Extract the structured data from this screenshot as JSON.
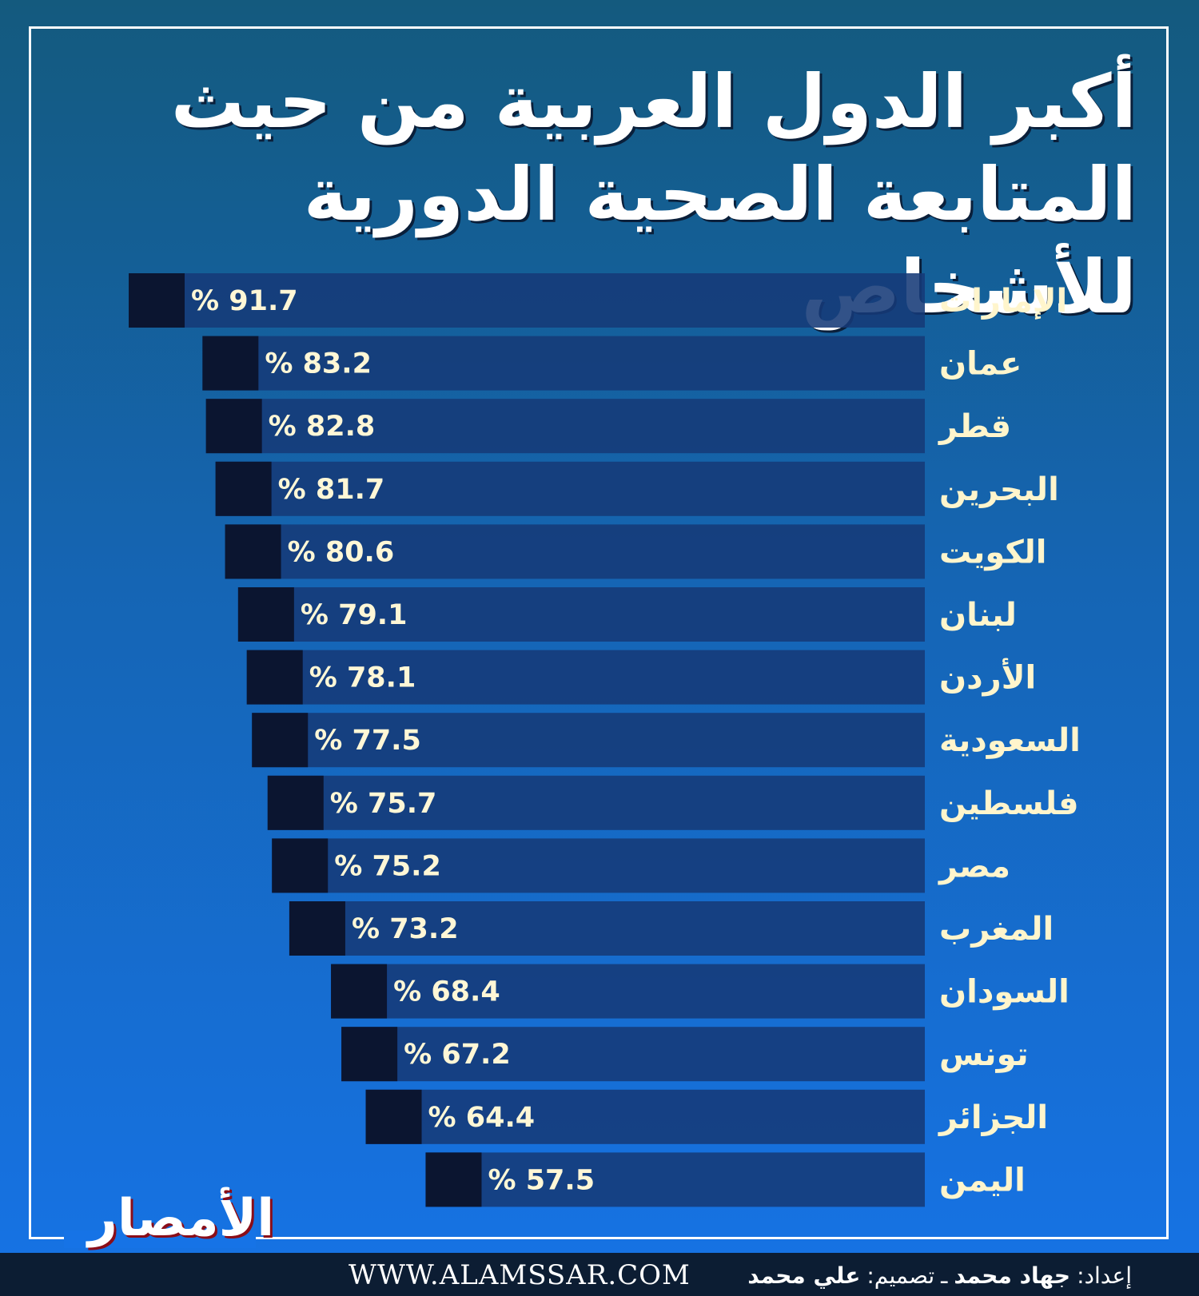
{
  "header": {
    "title_line1": "أكبر الدول العربية من حيث",
    "title_line2": "المتابعة الصحية الدورية للأشخاص"
  },
  "logo": {
    "text": "الأمصار"
  },
  "footer": {
    "site": "WWW.ALAMSSAR.COM",
    "prepared_label": "إعداد:",
    "prepared_name": "جهاد محمد",
    "separator": "ـ",
    "design_label": "تصميم:",
    "design_name": "علي محمد"
  },
  "chart_data": {
    "type": "bar",
    "orientation": "horizontal",
    "title": "أكبر الدول العربية من حيث المتابعة الصحية الدورية للأشخاص",
    "unit": "%",
    "categories": [
      "الإمارات",
      "عمان",
      "قطر",
      "البحرين",
      "الكويت",
      "لبنان",
      "الأردن",
      "السعودية",
      "فلسطين",
      "مصر",
      "المغرب",
      "السودان",
      "تونس",
      "الجزائر",
      "اليمن"
    ],
    "values": [
      91.7,
      83.2,
      82.8,
      81.7,
      80.6,
      79.1,
      78.1,
      77.5,
      75.7,
      75.2,
      73.2,
      68.4,
      67.2,
      64.4,
      57.5
    ],
    "value_labels": [
      "% 91.7",
      "% 83.2",
      "% 82.8",
      "% 81.7",
      "% 80.6",
      "% 79.1",
      "% 78.1",
      "% 77.5",
      "% 75.7",
      "% 75.2",
      "% 73.2",
      "% 68.4",
      "% 67.2",
      "% 64.4",
      "% 57.5"
    ],
    "legend": "none",
    "grid": false,
    "colors": {
      "bar": "#163a78",
      "bar_end": "#0b1530",
      "value_text": "#fff7d6",
      "category_text": "#fff5cc"
    }
  }
}
